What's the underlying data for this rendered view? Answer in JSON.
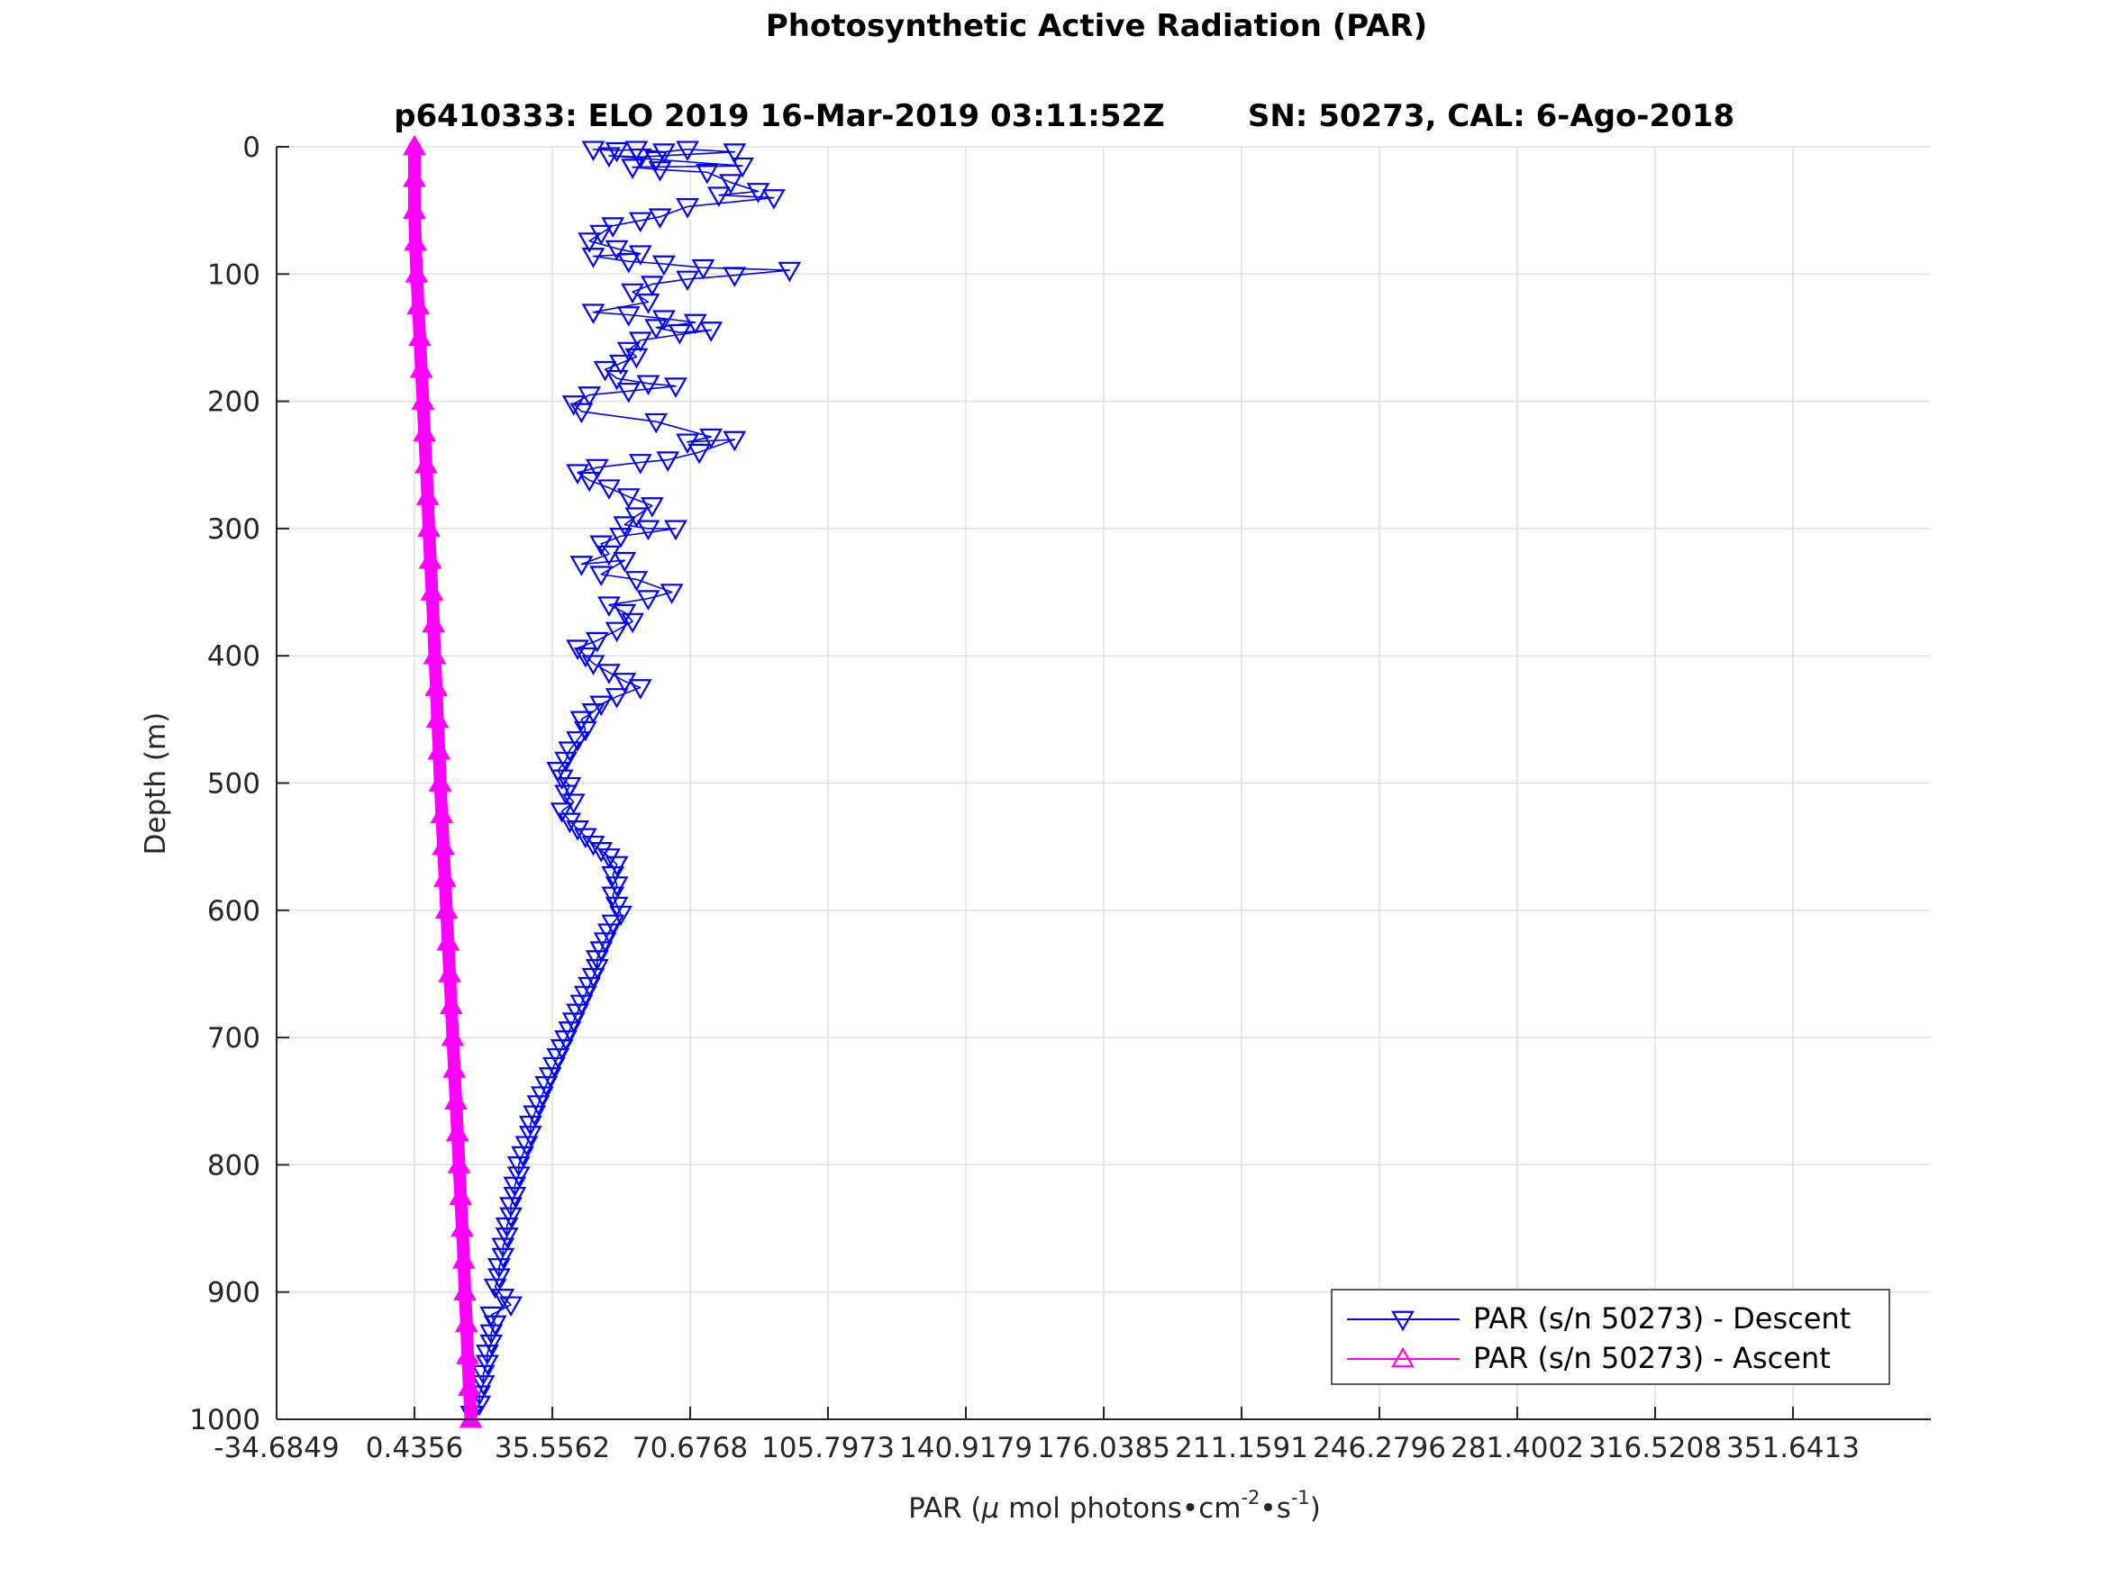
{
  "chart_data": {
    "type": "scatter",
    "title": "Photosynthetic Active Radiation (PAR)",
    "subtitle_left": "p6410333: ELO 2019 16-Mar-2019 03:11:52Z",
    "subtitle_right": "SN: 50273, CAL: 6-Ago-2018",
    "xlabel": {
      "prefix": "PAR (",
      "mu": "μ",
      "middle": " mol photons•cm",
      "sup1": "-2",
      "dot": "•s",
      "sup2": "-1",
      "suffix": ")"
    },
    "ylabel": "Depth (m)",
    "xlim": [
      -34.6849,
      386.7617
    ],
    "ylim": [
      0,
      1000
    ],
    "y_reversed": true,
    "grid": true,
    "legend_position": "bottom-right",
    "x_ticks": [
      -34.6849,
      0.4356,
      35.5562,
      70.6768,
      105.7973,
      140.9179,
      176.0385,
      211.1591,
      246.2796,
      281.4002,
      316.5208,
      351.6413
    ],
    "x_tick_labels": [
      "-34.6849",
      "0.4356",
      "35.5562",
      "70.6768",
      "105.7973",
      "140.9179",
      "176.0385",
      "211.1591",
      "246.2796",
      "281.4002",
      "316.5208",
      "351.6413"
    ],
    "y_ticks": [
      0,
      100,
      200,
      300,
      400,
      500,
      600,
      700,
      800,
      900,
      1000
    ],
    "y_tick_labels": [
      "0",
      "100",
      "200",
      "300",
      "400",
      "500",
      "600",
      "700",
      "800",
      "900",
      "1000"
    ],
    "series": [
      {
        "name": "PAR (s/n 50273) - Descent",
        "color": "#0000ff",
        "marker": "triangle-down",
        "points": [
          [
            46,
            2
          ],
          [
            52,
            3
          ],
          [
            57,
            2
          ],
          [
            64,
            4
          ],
          [
            70,
            2
          ],
          [
            82,
            4
          ],
          [
            58,
            8
          ],
          [
            50,
            7
          ],
          [
            62,
            10
          ],
          [
            84,
            15
          ],
          [
            56,
            16
          ],
          [
            63,
            18
          ],
          [
            75,
            20
          ],
          [
            81,
            28
          ],
          [
            88,
            35
          ],
          [
            78,
            38
          ],
          [
            92,
            40
          ],
          [
            70,
            47
          ],
          [
            63,
            55
          ],
          [
            58,
            58
          ],
          [
            51,
            62
          ],
          [
            48,
            68
          ],
          [
            45,
            74
          ],
          [
            52,
            80
          ],
          [
            58,
            84
          ],
          [
            46,
            86
          ],
          [
            55,
            90
          ],
          [
            64,
            92
          ],
          [
            74,
            95
          ],
          [
            96,
            97
          ],
          [
            82,
            101
          ],
          [
            70,
            104
          ],
          [
            61,
            108
          ],
          [
            56,
            114
          ],
          [
            60,
            122
          ],
          [
            46,
            130
          ],
          [
            55,
            132
          ],
          [
            64,
            135
          ],
          [
            72,
            138
          ],
          [
            62,
            142
          ],
          [
            68,
            146
          ],
          [
            76,
            144
          ],
          [
            58,
            152
          ],
          [
            55,
            160
          ],
          [
            57,
            165
          ],
          [
            53,
            170
          ],
          [
            49,
            175
          ],
          [
            52,
            182
          ],
          [
            60,
            186
          ],
          [
            67,
            188
          ],
          [
            55,
            192
          ],
          [
            45,
            195
          ],
          [
            41,
            202
          ],
          [
            43,
            208
          ],
          [
            62,
            216
          ],
          [
            76,
            228
          ],
          [
            70,
            232
          ],
          [
            82,
            230
          ],
          [
            73,
            240
          ],
          [
            65,
            246
          ],
          [
            58,
            248
          ],
          [
            47,
            252
          ],
          [
            42,
            256
          ],
          [
            45,
            262
          ],
          [
            50,
            268
          ],
          [
            55,
            275
          ],
          [
            61,
            282
          ],
          [
            57,
            290
          ],
          [
            54,
            297
          ],
          [
            60,
            300
          ],
          [
            67,
            300
          ],
          [
            53,
            306
          ],
          [
            48,
            312
          ],
          [
            50,
            320
          ],
          [
            43,
            328
          ],
          [
            54,
            325
          ],
          [
            48,
            336
          ],
          [
            57,
            340
          ],
          [
            66,
            350
          ],
          [
            60,
            355
          ],
          [
            50,
            360
          ],
          [
            54,
            366
          ],
          [
            56,
            373
          ],
          [
            52,
            380
          ],
          [
            47,
            388
          ],
          [
            42,
            394
          ],
          [
            44,
            400
          ],
          [
            46,
            406
          ],
          [
            50,
            413
          ],
          [
            54,
            420
          ],
          [
            58,
            425
          ],
          [
            52,
            432
          ],
          [
            48,
            438
          ],
          [
            46,
            444
          ],
          [
            43,
            450
          ],
          [
            44,
            458
          ],
          [
            42,
            466
          ],
          [
            40,
            474
          ],
          [
            39,
            482
          ],
          [
            37,
            490
          ],
          [
            38,
            496
          ],
          [
            40,
            502
          ],
          [
            39,
            508
          ],
          [
            41,
            515
          ],
          [
            38,
            522
          ],
          [
            40,
            530
          ],
          [
            42,
            536
          ],
          [
            44,
            542
          ],
          [
            46,
            548
          ],
          [
            48,
            553
          ],
          [
            50,
            558
          ],
          [
            52,
            564
          ],
          [
            51,
            572
          ],
          [
            52,
            580
          ],
          [
            51,
            588
          ],
          [
            52,
            596
          ],
          [
            53,
            603
          ],
          [
            51,
            610
          ],
          [
            50,
            617
          ],
          [
            49,
            624
          ],
          [
            48,
            631
          ],
          [
            47,
            638
          ],
          [
            47,
            645
          ],
          [
            46,
            652
          ],
          [
            45,
            659
          ],
          [
            44,
            666
          ],
          [
            43,
            673
          ],
          [
            42,
            680
          ],
          [
            41,
            687
          ],
          [
            40,
            694
          ],
          [
            39,
            701
          ],
          [
            38,
            708
          ],
          [
            37,
            715
          ],
          [
            36,
            722
          ],
          [
            35,
            730
          ],
          [
            34,
            737
          ],
          [
            33,
            745
          ],
          [
            32,
            752
          ],
          [
            31,
            760
          ],
          [
            30,
            768
          ],
          [
            30,
            776
          ],
          [
            29,
            784
          ],
          [
            28,
            792
          ],
          [
            27,
            800
          ],
          [
            27,
            808
          ],
          [
            26,
            816
          ],
          [
            26,
            824
          ],
          [
            25,
            832
          ],
          [
            25,
            840
          ],
          [
            24,
            848
          ],
          [
            24,
            856
          ],
          [
            23,
            864
          ],
          [
            23,
            872
          ],
          [
            22,
            880
          ],
          [
            22,
            888
          ],
          [
            21,
            896
          ],
          [
            23,
            904
          ],
          [
            25,
            910
          ],
          [
            20,
            918
          ],
          [
            21,
            925
          ],
          [
            20,
            932
          ],
          [
            20,
            940
          ],
          [
            19,
            948
          ],
          [
            19,
            956
          ],
          [
            18,
            964
          ],
          [
            18,
            972
          ],
          [
            17,
            980
          ],
          [
            17,
            988
          ],
          [
            15,
            996
          ]
        ]
      },
      {
        "name": "PAR (s/n 50273) - Ascent",
        "color": "#ff00ff",
        "marker": "triangle-up",
        "points": [
          [
            0.4356,
            0
          ],
          [
            0.4356,
            25
          ],
          [
            0.4356,
            50
          ],
          [
            0.7,
            75
          ],
          [
            1.0,
            100
          ],
          [
            1.4,
            125
          ],
          [
            1.8,
            150
          ],
          [
            2.2,
            175
          ],
          [
            2.6,
            200
          ],
          [
            3.0,
            225
          ],
          [
            3.4,
            250
          ],
          [
            3.8,
            275
          ],
          [
            4.1,
            300
          ],
          [
            4.5,
            325
          ],
          [
            4.9,
            350
          ],
          [
            5.3,
            375
          ],
          [
            5.6,
            400
          ],
          [
            6.0,
            425
          ],
          [
            6.3,
            450
          ],
          [
            6.7,
            475
          ],
          [
            7.0,
            500
          ],
          [
            7.4,
            525
          ],
          [
            7.8,
            550
          ],
          [
            8.2,
            575
          ],
          [
            8.6,
            600
          ],
          [
            9.0,
            625
          ],
          [
            9.4,
            650
          ],
          [
            9.8,
            675
          ],
          [
            10.2,
            700
          ],
          [
            10.6,
            725
          ],
          [
            11.0,
            750
          ],
          [
            11.4,
            775
          ],
          [
            11.8,
            800
          ],
          [
            12.2,
            825
          ],
          [
            12.6,
            850
          ],
          [
            13.0,
            875
          ],
          [
            13.3,
            900
          ],
          [
            13.7,
            925
          ],
          [
            14.0,
            950
          ],
          [
            14.4,
            975
          ],
          [
            14.8,
            1000
          ]
        ]
      }
    ]
  }
}
